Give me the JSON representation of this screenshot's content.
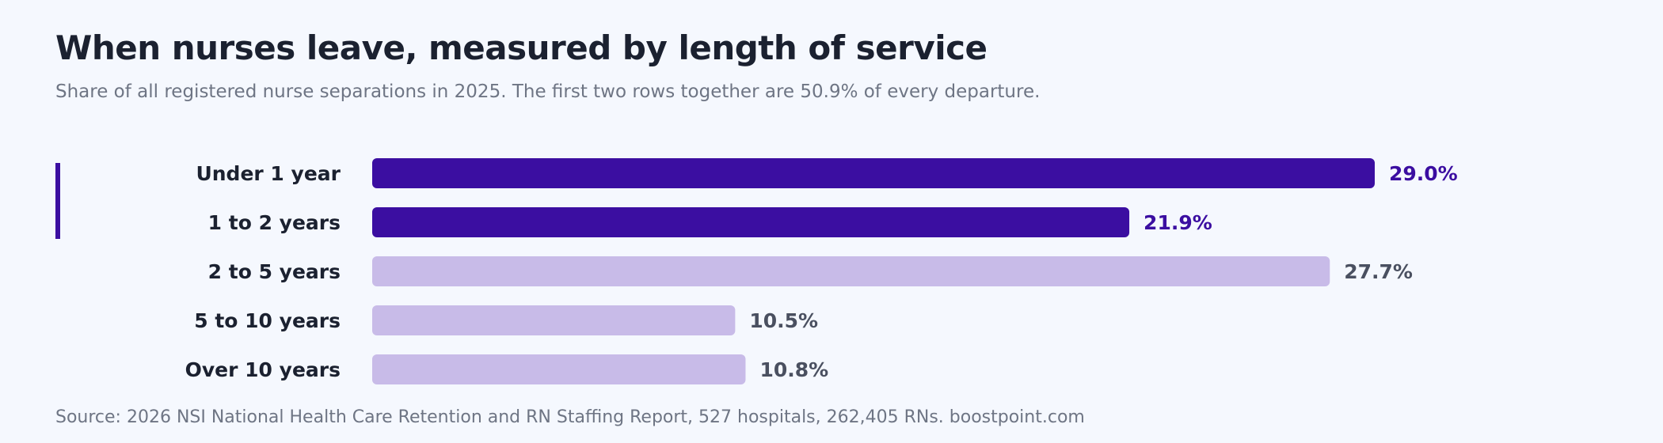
{
  "header": {
    "title": "When nurses leave, measured by length of service",
    "subtitle": "Share of all registered nurse separations in 2025. The first two rows together are 50.9% of every departure."
  },
  "footer": {
    "source": "Source: 2026 NSI National Health Care Retention and RN Staffing Report, 527 hospitals, 262,405 RNs. boostpoint.com"
  },
  "colors": {
    "highlight_bar": "#3b0ea1",
    "muted_bar": "#c8bbe8",
    "highlight_value": "#3b0ea1",
    "muted_value": "#4a5060",
    "accent_rule": "#3b0ea1",
    "category_text": "#1b2130"
  },
  "chart_data": {
    "type": "bar",
    "orientation": "horizontal",
    "categories": [
      "Under 1 year",
      "1 to 2 years",
      "2 to 5 years",
      "5 to 10 years",
      "Over 10 years"
    ],
    "values": [
      29.0,
      21.9,
      27.7,
      10.5,
      10.8
    ],
    "value_labels": [
      "29.0%",
      "21.9%",
      "27.7%",
      "10.5%",
      "10.8%"
    ],
    "highlighted": [
      true,
      true,
      false,
      false,
      false
    ],
    "unit": "%",
    "xlim": [
      0,
      29.0
    ],
    "grid": false,
    "legend": "none"
  }
}
